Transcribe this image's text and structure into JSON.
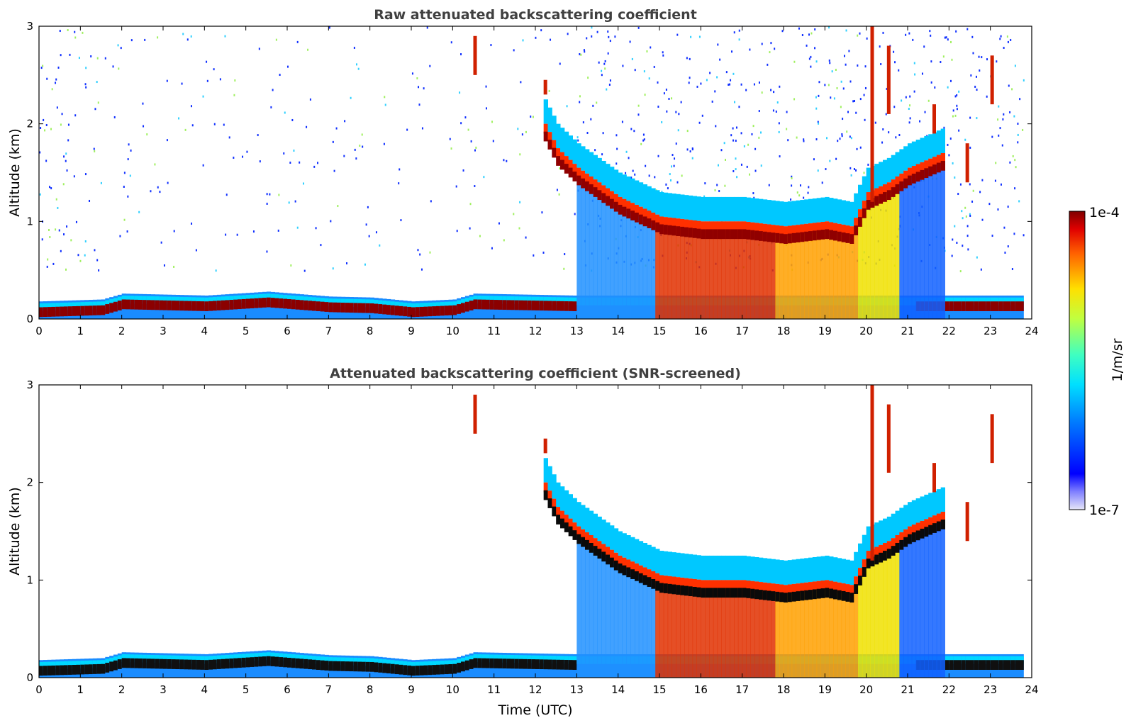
{
  "chart_data": [
    {
      "type": "heatmap",
      "title": "Raw attenuated backscattering coefficient",
      "xlabel": "",
      "ylabel": "Altitude (km)",
      "xlim": [
        0,
        24
      ],
      "ylim": [
        0,
        3
      ],
      "x_ticks": [
        "0",
        "1",
        "2",
        "3",
        "4",
        "5",
        "6",
        "7",
        "8",
        "9",
        "10",
        "11",
        "12",
        "13",
        "14",
        "15",
        "16",
        "17",
        "18",
        "19",
        "20",
        "21",
        "22",
        "23",
        "24"
      ],
      "y_ticks": [
        "0",
        "1",
        "2",
        "3"
      ],
      "screened": false,
      "layers": [
        {
          "name": "boundary layer top",
          "points": [
            [
              0,
              0.1
            ],
            [
              1.5,
              0.12
            ],
            [
              2,
              0.18
            ],
            [
              4,
              0.16
            ],
            [
              5.5,
              0.2
            ],
            [
              7,
              0.15
            ],
            [
              8,
              0.14
            ],
            [
              9,
              0.1
            ],
            [
              10,
              0.12
            ],
            [
              10.5,
              0.18
            ],
            [
              12.9,
              0.16
            ]
          ]
        },
        {
          "name": "cloud base",
          "points": [
            [
              12.2,
              1.9
            ],
            [
              12.5,
              1.65
            ],
            [
              13,
              1.45
            ],
            [
              13.5,
              1.3
            ],
            [
              14,
              1.15
            ],
            [
              14.5,
              1.05
            ],
            [
              15,
              0.95
            ],
            [
              16,
              0.9
            ],
            [
              17,
              0.9
            ],
            [
              18,
              0.85
            ],
            [
              19,
              0.9
            ],
            [
              19.6,
              0.85
            ],
            [
              20,
              1.2
            ],
            [
              20.5,
              1.3
            ],
            [
              21,
              1.45
            ],
            [
              21.8,
              1.6
            ]
          ]
        }
      ]
    },
    {
      "type": "heatmap",
      "title": "Attenuated backscattering coefficient (SNR-screened)",
      "xlabel": "Time (UTC)",
      "ylabel": "Altitude (km)",
      "xlim": [
        0,
        24
      ],
      "ylim": [
        0,
        3
      ],
      "x_ticks": [
        "0",
        "1",
        "2",
        "3",
        "4",
        "5",
        "6",
        "7",
        "8",
        "9",
        "10",
        "11",
        "12",
        "13",
        "14",
        "15",
        "16",
        "17",
        "18",
        "19",
        "20",
        "21",
        "22",
        "23",
        "24"
      ],
      "y_ticks": [
        "0",
        "1",
        "2",
        "3"
      ],
      "screened": true,
      "layers": [
        {
          "name": "boundary layer top",
          "points": [
            [
              0,
              0.1
            ],
            [
              1.5,
              0.12
            ],
            [
              2,
              0.18
            ],
            [
              4,
              0.16
            ],
            [
              5.5,
              0.2
            ],
            [
              7,
              0.15
            ],
            [
              8,
              0.14
            ],
            [
              9,
              0.1
            ],
            [
              10,
              0.12
            ],
            [
              10.5,
              0.18
            ],
            [
              12.9,
              0.16
            ]
          ]
        },
        {
          "name": "cloud base",
          "points": [
            [
              12.2,
              1.9
            ],
            [
              12.5,
              1.65
            ],
            [
              13,
              1.45
            ],
            [
              13.5,
              1.3
            ],
            [
              14,
              1.15
            ],
            [
              14.5,
              1.05
            ],
            [
              15,
              0.95
            ],
            [
              16,
              0.9
            ],
            [
              17,
              0.9
            ],
            [
              18,
              0.85
            ],
            [
              19,
              0.9
            ],
            [
              19.6,
              0.85
            ],
            [
              20,
              1.2
            ],
            [
              20.5,
              1.3
            ],
            [
              21,
              1.45
            ],
            [
              21.8,
              1.6
            ]
          ]
        }
      ]
    }
  ],
  "colorbar": {
    "label": "1/m/sr",
    "max_label": "1e-4",
    "min_label": "1e-7",
    "range": [
      1e-07,
      0.0001
    ],
    "scale": "log",
    "colormap": "jet"
  }
}
